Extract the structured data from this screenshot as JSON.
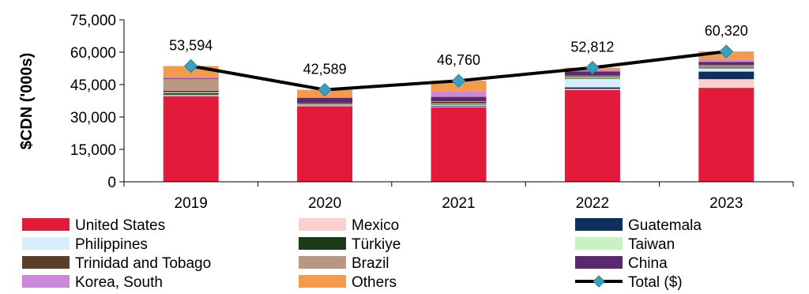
{
  "chart_data": {
    "type": "bar",
    "stacked": true,
    "categories": [
      "2019",
      "2020",
      "2021",
      "2022",
      "2023"
    ],
    "ylabel": "$CDN ('000s)",
    "ylim": [
      0,
      75000
    ],
    "yticks": [
      "0",
      "15,000",
      "30,000",
      "45,000",
      "60,000",
      "75,000"
    ],
    "ytick_values": [
      0,
      15000,
      30000,
      45000,
      60000,
      75000
    ],
    "grid": false,
    "legend_position": "bottom",
    "series": [
      {
        "name": "United States",
        "color": "#e31a3a",
        "values": [
          39500,
          35000,
          34500,
          42500,
          43500
        ]
      },
      {
        "name": "Mexico",
        "color": "#fdd0d0",
        "values": [
          300,
          200,
          300,
          500,
          4000
        ]
      },
      {
        "name": "Guatemala",
        "color": "#0d2f5e",
        "values": [
          200,
          100,
          300,
          700,
          3500
        ]
      },
      {
        "name": "Philippines",
        "color": "#d6edfa",
        "values": [
          300,
          300,
          500,
          4000,
          1500
        ]
      },
      {
        "name": "Türkiye",
        "color": "#1d3a1a",
        "values": [
          700,
          100,
          300,
          300,
          400
        ]
      },
      {
        "name": "Taiwan",
        "color": "#c9f2c3",
        "values": [
          400,
          200,
          300,
          300,
          300
        ]
      },
      {
        "name": "Trinidad and Tobago",
        "color": "#5a3e28",
        "values": [
          700,
          300,
          800,
          300,
          300
        ]
      },
      {
        "name": "Brazil",
        "color": "#b89880",
        "values": [
          5500,
          200,
          300,
          500,
          500
        ]
      },
      {
        "name": "China",
        "color": "#5b2a6e",
        "values": [
          300,
          2500,
          2000,
          2000,
          1500
        ]
      },
      {
        "name": "Korea, South",
        "color": "#cc88d8",
        "values": [
          600,
          200,
          2500,
          800,
          1000
        ]
      },
      {
        "name": "Others",
        "color": "#f49a4d",
        "values": [
          5094,
          3489,
          4960,
          912,
          3820
        ]
      }
    ],
    "line": {
      "name": "Total ($)",
      "color": "#000000",
      "marker_color": "#3aa0c0",
      "values": [
        53594,
        42589,
        46760,
        52812,
        60320
      ]
    },
    "data_labels": [
      "53,594",
      "42,589",
      "46,760",
      "52,812",
      "60,320"
    ]
  }
}
